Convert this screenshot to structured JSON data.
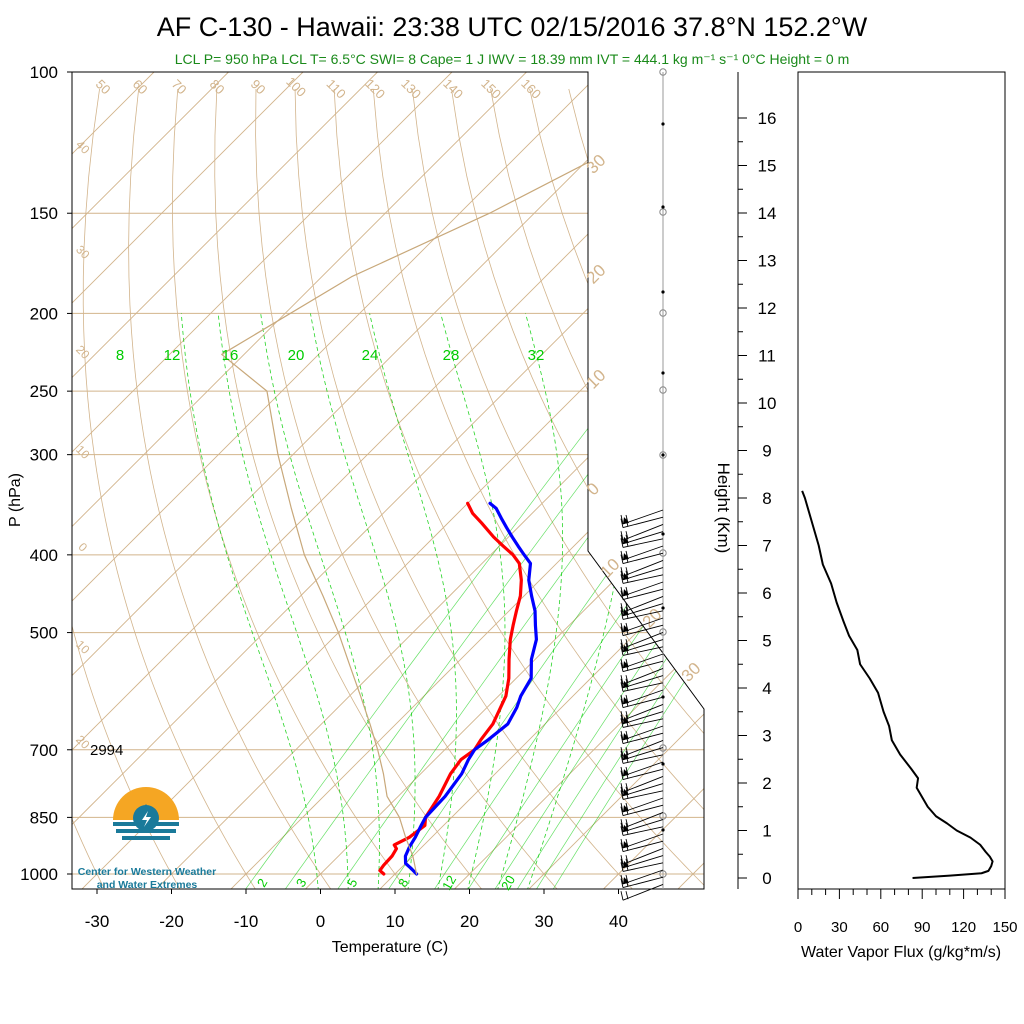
{
  "title": "AF C-130 - Hawaii: 23:38 UTC 02/15/2016  37.8°N 152.2°W",
  "subtitle": "LCL P= 950 hPa  LCL T= 6.5°C  SWI= 8  Cape= 1 J  IWV = 18.39 mm  IVT = 444.1 kg m⁻¹ s⁻¹  0°C Height = 0 m",
  "logo_text": [
    "Center for Western Weather",
    "and Water Extremes"
  ],
  "colors": {
    "temperature": "#ff0000",
    "dewpoint": "#0000ff",
    "isotherm_isobar": "#d2b48c",
    "mixing_ratio": "#00cc00",
    "wind_barbs": "#000000",
    "logo_orange": "#f5a623",
    "logo_blue": "#1a7a9a"
  },
  "chart_data": [
    {
      "type": "line",
      "name": "skew-t",
      "xlabel": "Temperature (C)",
      "ylabel": "P (hPa)",
      "xlim": [
        -35,
        50
      ],
      "ylim": [
        1050,
        100
      ],
      "y_scale": "log",
      "x_ticks": [
        "-30",
        "-20",
        "-10",
        "0",
        "10",
        "20",
        "30",
        "40"
      ],
      "y_ticks": [
        "100",
        "150",
        "200",
        "250",
        "300",
        "400",
        "500",
        "700",
        "850",
        "1000"
      ],
      "annotation": "2994",
      "dry_adiabat_labels": [
        "50",
        "60",
        "70",
        "80",
        "90",
        "100",
        "110",
        "120",
        "130",
        "140",
        "150",
        "160"
      ],
      "mixing_ratio_labels_top": [
        "8",
        "12",
        "16",
        "20",
        "24",
        "28",
        "32"
      ],
      "mixing_ratio_labels_bottom": [
        "2",
        "3",
        "5",
        "8",
        "12",
        "20"
      ],
      "isotherm_labels_left": [
        "40",
        "30",
        "20",
        "10",
        "0",
        "10",
        "20"
      ],
      "isotherm_labels_right": [
        "30",
        "20",
        "10",
        "0",
        "10",
        "20",
        "30"
      ],
      "series": [
        {
          "name": "Temperature",
          "points": [
            [
              8.5,
              1000
            ],
            [
              7.5,
              990
            ],
            [
              7.3,
              975
            ],
            [
              7.2,
              950
            ],
            [
              6.8,
              930
            ],
            [
              6.0,
              920
            ],
            [
              7.0,
              900
            ],
            [
              7.5,
              870
            ],
            [
              6.5,
              850
            ],
            [
              5.5,
              800
            ],
            [
              4.0,
              750
            ],
            [
              3.5,
              720
            ],
            [
              4.0,
              700
            ],
            [
              3.5,
              680
            ],
            [
              3.0,
              650
            ],
            [
              1.0,
              600
            ],
            [
              -1.0,
              570
            ],
            [
              -3.5,
              540
            ],
            [
              -6.0,
              510
            ],
            [
              -7.5,
              490
            ],
            [
              -9.0,
              470
            ],
            [
              -10.5,
              450
            ],
            [
              -12.5,
              430
            ],
            [
              -15.0,
              410
            ],
            [
              -17.0,
              400
            ],
            [
              -19.5,
              390
            ],
            [
              -22.0,
              380
            ],
            [
              -25.5,
              365
            ],
            [
              -28.0,
              355
            ],
            [
              -30.0,
              345
            ]
          ]
        },
        {
          "name": "Dew point",
          "points": [
            [
              12.9,
              1000
            ],
            [
              11.5,
              985
            ],
            [
              10.0,
              970
            ],
            [
              9.0,
              950
            ],
            [
              8.3,
              925
            ],
            [
              7.8,
              900
            ],
            [
              7.0,
              870
            ],
            [
              6.5,
              850
            ],
            [
              6.3,
              800
            ],
            [
              5.5,
              750
            ],
            [
              4.5,
              720
            ],
            [
              4.0,
              700
            ],
            [
              4.5,
              680
            ],
            [
              5.0,
              650
            ],
            [
              4.0,
              620
            ],
            [
              3.0,
              600
            ],
            [
              2.0,
              570
            ],
            [
              -0.5,
              540
            ],
            [
              -2.5,
              510
            ],
            [
              -4.5,
              490
            ],
            [
              -6.5,
              470
            ],
            [
              -9.0,
              450
            ],
            [
              -11.5,
              430
            ],
            [
              -13.5,
              410
            ],
            [
              -15.5,
              400
            ],
            [
              -17.5,
              390
            ],
            [
              -19.5,
              380
            ],
            [
              -21.5,
              370
            ],
            [
              -23.5,
              360
            ],
            [
              -25.5,
              350
            ],
            [
              -27.0,
              345
            ]
          ]
        },
        {
          "name": "Parcel",
          "points": [
            [
              12.9,
              1000
            ],
            [
              10.0,
              950
            ],
            [
              6.5,
              900
            ],
            [
              3.0,
              850
            ],
            [
              -1.5,
              800
            ],
            [
              -5.0,
              750
            ],
            [
              -9.0,
              700
            ],
            [
              -13.5,
              650
            ],
            [
              -18.5,
              600
            ],
            [
              -24.0,
              550
            ],
            [
              -30.0,
              500
            ],
            [
              -37.0,
              450
            ],
            [
              -45.0,
              400
            ],
            [
              -53.0,
              350
            ],
            [
              -62.0,
              300
            ],
            [
              -72.0,
              250
            ],
            [
              -83.0,
              225
            ],
            [
              -76.0,
              180
            ],
            [
              -66.0,
              150
            ],
            [
              -58.0,
              125
            ],
            [
              -50.0,
              100
            ]
          ]
        }
      ]
    },
    {
      "type": "line",
      "name": "water-vapor-flux",
      "xlabel": "Water Vapor Flux (g/kg*m/s)",
      "ylabel": "Height (Km)",
      "xlim": [
        0,
        150
      ],
      "ylim": [
        -0.2,
        16.4
      ],
      "x_ticks": [
        "0",
        "30",
        "60",
        "90",
        "120",
        "150"
      ],
      "y_ticks": [
        "0",
        "1",
        "2",
        "3",
        "4",
        "5",
        "6",
        "7",
        "8",
        "9",
        "10",
        "11",
        "12",
        "13",
        "14",
        "15",
        "16"
      ],
      "series": [
        {
          "name": "Water Vapor Flux",
          "points": [
            [
              83,
              0.0
            ],
            [
              110,
              0.05
            ],
            [
              133,
              0.1
            ],
            [
              138,
              0.15
            ],
            [
              140,
              0.25
            ],
            [
              141,
              0.35
            ],
            [
              139,
              0.45
            ],
            [
              136,
              0.55
            ],
            [
              132,
              0.7
            ],
            [
              125,
              0.85
            ],
            [
              115,
              1.0
            ],
            [
              108,
              1.15
            ],
            [
              100,
              1.3
            ],
            [
              94,
              1.5
            ],
            [
              90,
              1.7
            ],
            [
              86,
              1.9
            ],
            [
              87,
              2.1
            ],
            [
              82,
              2.3
            ],
            [
              74,
              2.6
            ],
            [
              68,
              2.9
            ],
            [
              66,
              3.2
            ],
            [
              62,
              3.5
            ],
            [
              58,
              3.9
            ],
            [
              52,
              4.2
            ],
            [
              45,
              4.5
            ],
            [
              43,
              4.8
            ],
            [
              37,
              5.1
            ],
            [
              33,
              5.4
            ],
            [
              28,
              5.8
            ],
            [
              24,
              6.2
            ],
            [
              18,
              6.6
            ],
            [
              15,
              7.0
            ],
            [
              11,
              7.4
            ],
            [
              8,
              7.7
            ],
            [
              5,
              8.0
            ],
            [
              3,
              8.15
            ]
          ]
        }
      ]
    }
  ]
}
